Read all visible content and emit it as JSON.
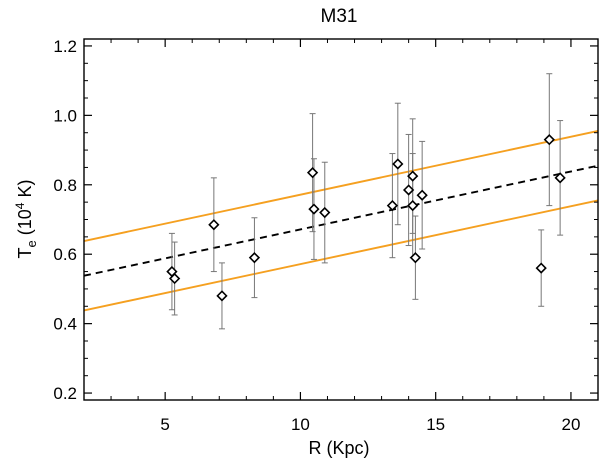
{
  "chart_data": {
    "type": "scatter",
    "title": "M31",
    "xlabel": "R (Kpc)",
    "ylabel": {
      "base": "T",
      "sub": "e",
      "prefix": " (10",
      "sup": "4",
      "suffix": " K)"
    },
    "xlim": [
      2.0,
      21.0
    ],
    "ylim": [
      0.18,
      1.22
    ],
    "x_ticks": [
      5,
      10,
      15,
      20
    ],
    "x_tick_labels": [
      "5",
      "10",
      "15",
      "20"
    ],
    "y_ticks": [
      0.2,
      0.4,
      0.6,
      0.8,
      1.0,
      1.2
    ],
    "y_tick_labels": [
      "0.2",
      "0.4",
      "0.6",
      "0.8",
      "1.0",
      "1.2"
    ],
    "grid": false,
    "points": [
      {
        "x": 5.25,
        "y": 0.55,
        "err": 0.11
      },
      {
        "x": 5.35,
        "y": 0.53,
        "err": 0.105
      },
      {
        "x": 6.8,
        "y": 0.685,
        "err": 0.135
      },
      {
        "x": 7.1,
        "y": 0.48,
        "err": 0.095
      },
      {
        "x": 8.3,
        "y": 0.59,
        "err": 0.115
      },
      {
        "x": 10.45,
        "y": 0.835,
        "err": 0.17
      },
      {
        "x": 10.5,
        "y": 0.73,
        "err": 0.145
      },
      {
        "x": 10.9,
        "y": 0.72,
        "err": 0.145
      },
      {
        "x": 13.4,
        "y": 0.74,
        "err": 0.15
      },
      {
        "x": 13.6,
        "y": 0.86,
        "err": 0.175
      },
      {
        "x": 14.0,
        "y": 0.785,
        "err": 0.16
      },
      {
        "x": 14.15,
        "y": 0.825,
        "err": 0.165
      },
      {
        "x": 14.15,
        "y": 0.74,
        "err": 0.15
      },
      {
        "x": 14.25,
        "y": 0.59,
        "err": 0.12
      },
      {
        "x": 14.5,
        "y": 0.77,
        "err": 0.155
      },
      {
        "x": 18.9,
        "y": 0.56,
        "err": 0.11
      },
      {
        "x": 19.2,
        "y": 0.93,
        "err": 0.19
      },
      {
        "x": 19.6,
        "y": 0.82,
        "err": 0.165
      }
    ],
    "series": [
      {
        "name": "fit",
        "style": "dashed",
        "color": "#000000",
        "x": [
          2.0,
          21.0
        ],
        "y": [
          0.538,
          0.855
        ]
      },
      {
        "name": "upper bound",
        "style": "solid",
        "color": "#f5a020",
        "x": [
          2.0,
          21.0
        ],
        "y": [
          0.638,
          0.955
        ]
      },
      {
        "name": "lower bound",
        "style": "solid",
        "color": "#f5a020",
        "x": [
          2.0,
          21.0
        ],
        "y": [
          0.438,
          0.755
        ]
      }
    ]
  }
}
